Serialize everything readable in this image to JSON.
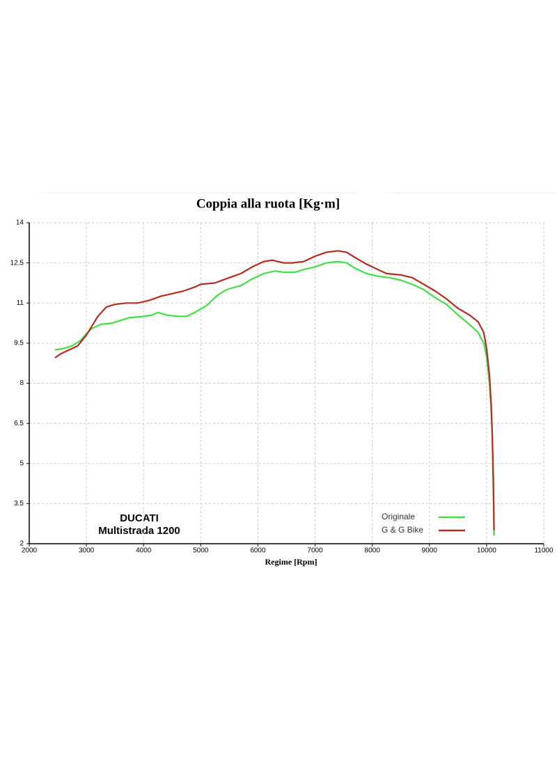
{
  "chart_data": {
    "type": "line",
    "title": "Coppia alla ruota  [Kg·m]",
    "x_label": "Regime [Rpm]",
    "annotations": [
      "DUCATI",
      "Multistrada 1200"
    ],
    "xlim": [
      2000,
      11000
    ],
    "xticks": [
      2000,
      3000,
      4000,
      5000,
      6000,
      7000,
      8000,
      9000,
      10000,
      11000
    ],
    "ylim": [
      2,
      14
    ],
    "yticks": [
      2,
      3.5,
      5,
      6.5,
      8,
      9.5,
      11,
      12.5,
      14
    ],
    "grid": true,
    "series": [
      {
        "name": "Originale",
        "color": "#3fe03f",
        "x": [
          2450,
          2600,
          2750,
          2900,
          3000,
          3100,
          3250,
          3450,
          3600,
          3750,
          4000,
          4150,
          4250,
          4400,
          4600,
          4750,
          4900,
          5100,
          5300,
          5450,
          5700,
          5900,
          6100,
          6300,
          6450,
          6650,
          6800,
          7000,
          7200,
          7400,
          7550,
          7700,
          7900,
          8100,
          8300,
          8500,
          8700,
          8900,
          9100,
          9300,
          9500,
          9700,
          9850,
          9950,
          10000,
          10050,
          10080,
          10100,
          10120,
          10130
        ],
        "values": [
          9.25,
          9.3,
          9.4,
          9.6,
          9.85,
          10.05,
          10.2,
          10.25,
          10.35,
          10.45,
          10.5,
          10.55,
          10.65,
          10.55,
          10.5,
          10.5,
          10.65,
          10.9,
          11.3,
          11.5,
          11.65,
          11.9,
          12.1,
          12.2,
          12.15,
          12.15,
          12.25,
          12.35,
          12.5,
          12.55,
          12.5,
          12.3,
          12.1,
          12.0,
          11.95,
          11.85,
          11.7,
          11.5,
          11.2,
          10.95,
          10.55,
          10.2,
          9.9,
          9.5,
          9.0,
          8.0,
          7.0,
          6.0,
          4.5,
          2.3
        ]
      },
      {
        "name": "G & G Bike",
        "color": "#b52a22",
        "x": [
          2450,
          2550,
          2700,
          2850,
          3000,
          3100,
          3200,
          3350,
          3500,
          3700,
          3900,
          4100,
          4300,
          4500,
          4700,
          4900,
          5000,
          5250,
          5500,
          5700,
          5900,
          6100,
          6250,
          6450,
          6600,
          6800,
          7000,
          7200,
          7400,
          7550,
          7700,
          7900,
          8100,
          8250,
          8500,
          8700,
          8900,
          9100,
          9300,
          9500,
          9700,
          9850,
          9950,
          10000,
          10050,
          10080,
          10100,
          10120,
          10130
        ],
        "values": [
          8.95,
          9.1,
          9.25,
          9.4,
          9.8,
          10.15,
          10.5,
          10.85,
          10.95,
          11.0,
          11.0,
          11.1,
          11.25,
          11.35,
          11.45,
          11.6,
          11.7,
          11.75,
          11.95,
          12.1,
          12.35,
          12.55,
          12.6,
          12.5,
          12.5,
          12.55,
          12.75,
          12.9,
          12.95,
          12.9,
          12.7,
          12.45,
          12.25,
          12.1,
          12.05,
          11.95,
          11.7,
          11.45,
          11.15,
          10.8,
          10.55,
          10.3,
          9.9,
          9.3,
          8.3,
          7.2,
          6.0,
          4.0,
          2.5
        ]
      }
    ]
  }
}
